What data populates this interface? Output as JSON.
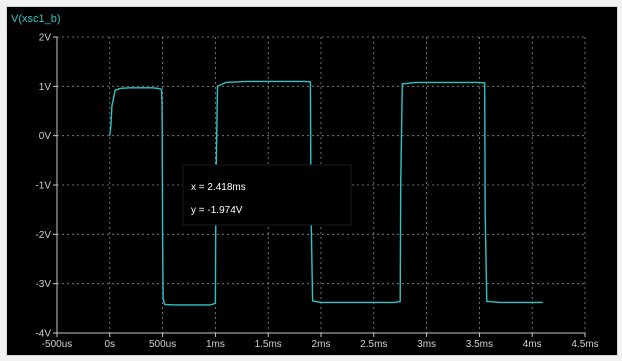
{
  "window": {
    "trace_title": "V(xsc1_b)"
  },
  "cursor_readout": {
    "x_text": "x = 2.418ms",
    "y_text": "y = -1.974V"
  },
  "colors": {
    "background": "#000000",
    "trace": "#2ec4c4",
    "title": "#2ec4c4",
    "grid": "#8a8a8a",
    "axis": "#c8c8c8",
    "tick_label": "#d0d0d0"
  },
  "chart_data": {
    "type": "line",
    "title": "V(xsc1_b)",
    "xlabel": "",
    "ylabel": "",
    "xlim": [
      -0.0005,
      0.0045
    ],
    "ylim": [
      -4,
      2
    ],
    "x_tick_labels": [
      "-500us",
      "0s",
      "500us",
      "1ms",
      "1.5ms",
      "2ms",
      "2.5ms",
      "3ms",
      "3.5ms",
      "4ms",
      "4.5ms"
    ],
    "x_tick_values": [
      -0.0005,
      0,
      0.0005,
      0.001,
      0.0015,
      0.002,
      0.0025,
      0.003,
      0.0035,
      0.004,
      0.0045
    ],
    "y_tick_labels": [
      "-4V",
      "-3V",
      "-2V",
      "-1V",
      "0V",
      "1V",
      "2V"
    ],
    "y_tick_values": [
      -4,
      -3,
      -2,
      -1,
      0,
      1,
      2
    ],
    "grid": true,
    "series": [
      {
        "x": [
          0,
          1e-05,
          2e-05,
          5e-05,
          0.0001,
          0.0002,
          0.0003,
          0.0004,
          0.00045,
          0.00049,
          0.000495,
          0.0005,
          0.000505,
          0.00052,
          0.0006,
          0.0008,
          0.00095,
          0.001,
          0.001005,
          0.00102,
          0.0011,
          0.0013,
          0.0015,
          0.0017,
          0.00185,
          0.0019,
          0.001905,
          0.00192,
          0.002,
          0.0022,
          0.0024,
          0.0026,
          0.0027,
          0.00275,
          0.002755,
          0.00277,
          0.0029,
          0.0031,
          0.0033,
          0.0035,
          0.00355,
          0.003555,
          0.00357,
          0.0037,
          0.0039,
          0.0041
        ],
        "y": [
          0,
          0.2,
          0.6,
          0.92,
          0.96,
          0.97,
          0.97,
          0.97,
          0.96,
          0.94,
          0.6,
          -2.0,
          -3.3,
          -3.42,
          -3.43,
          -3.43,
          -3.43,
          -3.4,
          -1.0,
          1.0,
          1.08,
          1.1,
          1.1,
          1.1,
          1.1,
          1.09,
          -1.5,
          -3.35,
          -3.38,
          -3.38,
          -3.38,
          -3.38,
          -3.38,
          -3.36,
          -1.0,
          1.05,
          1.08,
          1.08,
          1.08,
          1.08,
          1.07,
          -1.6,
          -3.36,
          -3.38,
          -3.38,
          -3.38
        ]
      }
    ]
  }
}
